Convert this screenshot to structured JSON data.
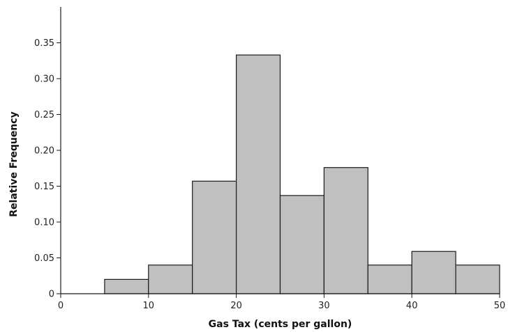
{
  "chart_data": {
    "type": "bar",
    "subtype": "histogram",
    "xlabel": "Gas Tax (cents per gallon)",
    "ylabel": "Relative Frequency",
    "xlim": [
      0,
      50
    ],
    "ylim": [
      0,
      0.4
    ],
    "xticks": [
      "0",
      "10",
      "20",
      "30",
      "40",
      "50"
    ],
    "yticks": [
      "0",
      "0.05",
      "0.10",
      "0.15",
      "0.20",
      "0.25",
      "0.30",
      "0.35"
    ],
    "bins": [
      {
        "start": 5,
        "end": 10,
        "value": 0.02
      },
      {
        "start": 10,
        "end": 15,
        "value": 0.04
      },
      {
        "start": 15,
        "end": 20,
        "value": 0.157
      },
      {
        "start": 20,
        "end": 25,
        "value": 0.333
      },
      {
        "start": 25,
        "end": 30,
        "value": 0.137
      },
      {
        "start": 30,
        "end": 35,
        "value": 0.176
      },
      {
        "start": 35,
        "end": 40,
        "value": 0.04
      },
      {
        "start": 40,
        "end": 45,
        "value": 0.059
      },
      {
        "start": 45,
        "end": 50,
        "value": 0.04
      }
    ],
    "bar_color": "#c0c0c0",
    "edge_color": "#1a1a1a",
    "grid": false,
    "legend": "none"
  }
}
